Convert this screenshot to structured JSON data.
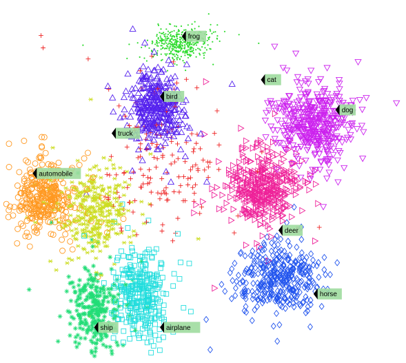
{
  "chart_data": {
    "type": "scatter",
    "title": "",
    "xlabel": "",
    "ylabel": "",
    "axes_visible": false,
    "grid": false,
    "legend": "none",
    "point_style": "hollow markers, dense clusters",
    "series": [
      {
        "label": "frog",
        "color": "#32dc32",
        "marker": "dot",
        "center": [
          -0.5,
          -0.4
        ],
        "spread": [
          0.6,
          0.22
        ],
        "count": 420
      },
      {
        "label": "cat",
        "color": "#ee2222",
        "marker": "plus",
        "center": [
          -0.9,
          1.4
        ],
        "spread": [
          1.3,
          1.1
        ],
        "count": 160
      },
      {
        "label": "bird",
        "color": "#5522ee",
        "marker": "triangle-up",
        "center": [
          -1.05,
          0.55
        ],
        "spread": [
          0.6,
          0.5
        ],
        "count": 360
      },
      {
        "label": "dog",
        "color": "#cc22ee",
        "marker": "triangle-down",
        "center": [
          2.55,
          0.8
        ],
        "spread": [
          0.8,
          0.55
        ],
        "count": 420
      },
      {
        "label": "deer",
        "color": "#ee2299",
        "marker": "triangle-right",
        "center": [
          1.4,
          1.8
        ],
        "spread": [
          0.75,
          0.55
        ],
        "count": 400
      },
      {
        "label": "horse",
        "color": "#2255ee",
        "marker": "diamond",
        "center": [
          1.75,
          3.1
        ],
        "spread": [
          0.9,
          0.45
        ],
        "count": 380
      },
      {
        "label": "airplane",
        "color": "#22dddd",
        "marker": "square",
        "center": [
          -1.4,
          3.35
        ],
        "spread": [
          0.55,
          0.6
        ],
        "count": 330
      },
      {
        "label": "ship",
        "color": "#22dd77",
        "marker": "asterisk",
        "center": [
          -2.45,
          3.6
        ],
        "spread": [
          0.55,
          0.55
        ],
        "count": 300
      },
      {
        "label": "automobile",
        "color": "#ff9922",
        "marker": "circle",
        "center": [
          -3.6,
          1.9
        ],
        "spread": [
          0.6,
          0.5
        ],
        "count": 360
      },
      {
        "label": "truck",
        "color": "#ccdd22",
        "marker": "star",
        "center": [
          -2.4,
          2.1
        ],
        "spread": [
          0.75,
          0.55
        ],
        "count": 340
      }
    ],
    "labels": [
      {
        "text": "frog",
        "at": [
          -0.45,
          -0.5
        ]
      },
      {
        "text": "cat",
        "at": [
          1.35,
          0.15
        ]
      },
      {
        "text": "bird",
        "at": [
          -0.95,
          0.4
        ]
      },
      {
        "text": "dog",
        "at": [
          3.05,
          0.6
        ]
      },
      {
        "text": "truck",
        "at": [
          -2.05,
          0.95
        ]
      },
      {
        "text": "automobile",
        "at": [
          -3.85,
          1.55
        ]
      },
      {
        "text": "deer",
        "at": [
          1.75,
          2.4
        ]
      },
      {
        "text": "horse",
        "at": [
          2.55,
          3.35
        ]
      },
      {
        "text": "ship",
        "at": [
          -2.45,
          3.85
        ]
      },
      {
        "text": "airplane",
        "at": [
          -0.95,
          3.85
        ]
      }
    ]
  }
}
